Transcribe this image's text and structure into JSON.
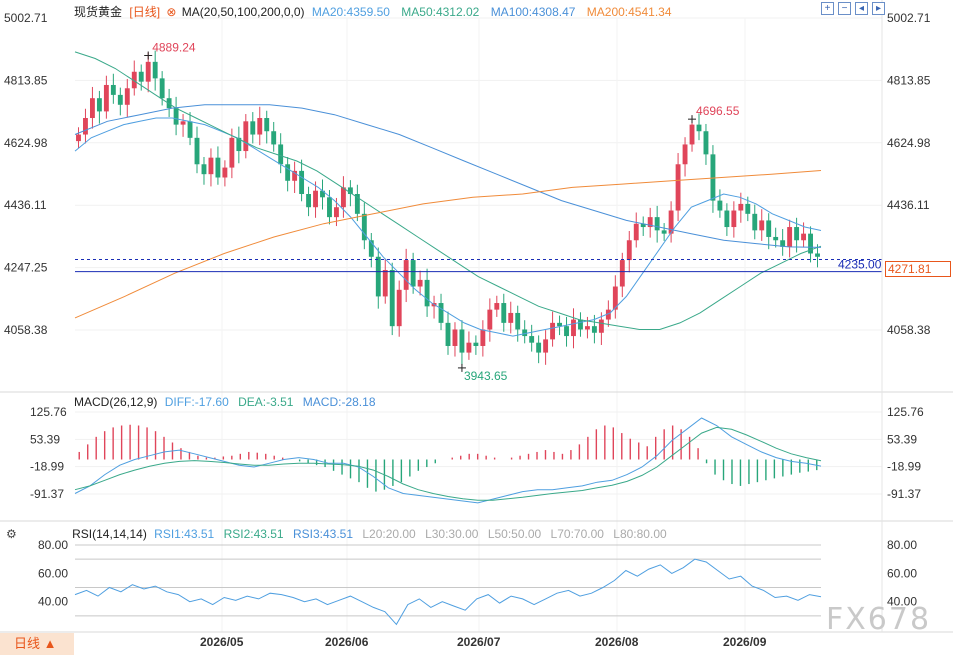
{
  "header": {
    "symbol": "现货黄金",
    "period_tag": "[日线]",
    "ma_label": "MA(20,50,100,200,0,0)",
    "ma20": "MA20:4359.50",
    "ma50": "MA50:4312.02",
    "ma100": "MA100:4308.47",
    "ma200": "MA200:4541.34"
  },
  "toolbar": {
    "zoom_in": "+",
    "zoom_out": "−",
    "pan_left": "◂",
    "pan_right": "▸"
  },
  "macd_header": {
    "label": "MACD(26,12,9)",
    "diff": "DIFF:-17.60",
    "dea": "DEA:-3.51",
    "macd": "MACD:-28.18"
  },
  "rsi_header": {
    "label": "RSI(14,14,14)",
    "rsi1": "RSI1:43.51",
    "rsi2": "RSI2:43.51",
    "rsi3": "RSI3:43.51",
    "l20": "L20:20.00",
    "l30": "L30:30.00",
    "l50": "L50:50.00",
    "l70": "L70:70.00",
    "l80": "L80:80.00"
  },
  "period_tab": "日线 ▲",
  "watermark": "FX678",
  "colors": {
    "up": "#e0455a",
    "down": "#27a67a",
    "ma20": "#4f9fe0",
    "ma50": "#3aa98a",
    "ma100": "#4a90d8",
    "ma200": "#f08b3a",
    "hline": "#1a2db5"
  },
  "chart_data": [
    {
      "type": "candlestick",
      "title": "现货黄金",
      "ylim": [
        3943.65,
        5002.71
      ],
      "yticks": [
        "5002.71",
        "4813.85",
        "4624.98",
        "4436.11",
        "4247.25",
        "4058.38"
      ],
      "xticks": [
        "2026/05",
        "2026/06",
        "2026/07",
        "2026/08",
        "2026/09"
      ],
      "last_price": "4271.81",
      "horizontal_line": {
        "value": 4235.0,
        "label": "4235.00"
      },
      "annotations": [
        {
          "label": "4889.24",
          "kind": "high"
        },
        {
          "label": "4696.55",
          "kind": "high"
        },
        {
          "label": "3943.65",
          "kind": "low"
        }
      ],
      "close": [
        4650,
        4700,
        4760,
        4720,
        4800,
        4770,
        4740,
        4790,
        4840,
        4810,
        4870,
        4820,
        4760,
        4730,
        4680,
        4690,
        4640,
        4560,
        4530,
        4580,
        4520,
        4550,
        4640,
        4600,
        4690,
        4650,
        4700,
        4660,
        4620,
        4560,
        4510,
        4540,
        4470,
        4430,
        4480,
        4460,
        4400,
        4430,
        4490,
        4470,
        4410,
        4330,
        4280,
        4160,
        4240,
        4070,
        4180,
        4270,
        4190,
        4210,
        4130,
        4140,
        4080,
        4010,
        4060,
        3990,
        4020,
        4010,
        4060,
        4120,
        4140,
        4080,
        4110,
        4060,
        4040,
        4020,
        3990,
        4030,
        4080,
        4070,
        4040,
        4090,
        4060,
        4070,
        4050,
        4090,
        4120,
        4190,
        4270,
        4330,
        4380,
        4370,
        4400,
        4360,
        4350,
        4420,
        4560,
        4620,
        4680,
        4660,
        4590,
        4450,
        4420,
        4370,
        4420,
        4440,
        4410,
        4360,
        4390,
        4340,
        4330,
        4310,
        4370,
        4330,
        4350,
        4290,
        4280
      ],
      "series": [
        {
          "name": "MA20",
          "values": [
            4600,
            4640,
            4660,
            4680,
            4690,
            4700,
            4700,
            4690,
            4680,
            4660,
            4640,
            4610,
            4580,
            4550,
            4520,
            4490,
            4450,
            4400,
            4340,
            4280,
            4230,
            4180,
            4140,
            4110,
            4080,
            4060,
            4050,
            4040,
            4050,
            4060,
            4070,
            4080,
            4090,
            4110,
            4160,
            4230,
            4300,
            4370,
            4430,
            4450,
            4470,
            4460,
            4440,
            4410,
            4390,
            4370,
            4359.5
          ]
        },
        {
          "name": "MA50",
          "values": [
            4900,
            4880,
            4850,
            4810,
            4770,
            4730,
            4700,
            4670,
            4640,
            4610,
            4590,
            4570,
            4540,
            4500,
            4460,
            4420,
            4380,
            4340,
            4300,
            4260,
            4220,
            4190,
            4160,
            4130,
            4110,
            4090,
            4080,
            4070,
            4060,
            4060,
            4080,
            4110,
            4150,
            4190,
            4230,
            4260,
            4290,
            4312
          ]
        },
        {
          "name": "MA100",
          "values": [
            4650,
            4690,
            4710,
            4730,
            4740,
            4740,
            4740,
            4730,
            4710,
            4680,
            4650,
            4610,
            4570,
            4530,
            4490,
            4450,
            4420,
            4390,
            4370,
            4350,
            4330,
            4320,
            4310,
            4308.5
          ]
        },
        {
          "name": "MA200",
          "values": [
            4095,
            4160,
            4230,
            4290,
            4340,
            4380,
            4410,
            4440,
            4460,
            4470,
            4490,
            4500,
            4510,
            4520,
            4530,
            4541
          ]
        }
      ]
    },
    {
      "type": "bar",
      "title": "MACD(26,12,9)",
      "ylim": [
        -91.37,
        125.76
      ],
      "yticks": [
        "125.76",
        "53.39",
        "-18.99",
        "-91.37"
      ],
      "values_macd_hist": [
        20,
        40,
        60,
        75,
        85,
        90,
        92,
        90,
        85,
        75,
        60,
        45,
        30,
        20,
        10,
        5,
        5,
        8,
        10,
        15,
        20,
        18,
        15,
        10,
        5,
        0,
        -5,
        -10,
        -15,
        -20,
        -30,
        -40,
        -50,
        -60,
        -75,
        -85,
        -80,
        -70,
        -60,
        -45,
        -30,
        -20,
        -10,
        0,
        5,
        10,
        15,
        15,
        10,
        5,
        0,
        5,
        10,
        15,
        20,
        25,
        20,
        15,
        25,
        40,
        60,
        80,
        90,
        85,
        70,
        55,
        45,
        35,
        60,
        80,
        90,
        80,
        60,
        30,
        -10,
        -40,
        -55,
        -65,
        -70,
        -65,
        -60,
        -55,
        -50,
        -45,
        -40,
        -35,
        -32,
        -28.18
      ],
      "series": [
        {
          "name": "DIFF",
          "values": [
            -90,
            -70,
            -40,
            -15,
            0,
            10,
            20,
            25,
            15,
            5,
            -5,
            -15,
            -20,
            -10,
            0,
            5,
            0,
            -10,
            -10,
            -20,
            -45,
            -75,
            -90,
            -95,
            -100,
            -105,
            -110,
            -115,
            -105,
            -95,
            -85,
            -80,
            -80,
            -75,
            -70,
            -60,
            -55,
            -40,
            -20,
            10,
            50,
            80,
            110,
            90,
            60,
            40,
            20,
            5,
            -5,
            -10,
            -17.6
          ]
        },
        {
          "name": "DEA",
          "values": [
            -80,
            -70,
            -55,
            -40,
            -28,
            -18,
            -10,
            -5,
            -3,
            -5,
            -8,
            -12,
            -15,
            -15,
            -12,
            -10,
            -10,
            -12,
            -14,
            -18,
            -28,
            -45,
            -65,
            -80,
            -90,
            -98,
            -104,
            -108,
            -108,
            -104,
            -100,
            -95,
            -90,
            -86,
            -82,
            -75,
            -68,
            -58,
            -42,
            -20,
            10,
            40,
            70,
            85,
            80,
            65,
            48,
            30,
            15,
            5,
            -3.51
          ]
        }
      ]
    },
    {
      "type": "line",
      "title": "RSI(14,14,14)",
      "ylim": [
        20,
        80
      ],
      "yticks": [
        "80.00",
        "60.00",
        "40.00"
      ],
      "levels": [
        20,
        30,
        50,
        70,
        80
      ],
      "series": [
        {
          "name": "RSI1",
          "values": [
            45,
            48,
            44,
            50,
            47,
            52,
            49,
            51,
            47,
            45,
            40,
            42,
            38,
            43,
            41,
            44,
            42,
            46,
            45,
            43,
            40,
            42,
            38,
            41,
            44,
            40,
            36,
            33,
            24,
            38,
            42,
            36,
            40,
            37,
            34,
            42,
            45,
            39,
            44,
            42,
            38,
            42,
            46,
            48,
            44,
            46,
            50,
            55,
            62,
            58,
            63,
            66,
            60,
            64,
            70,
            68,
            62,
            56,
            58,
            51,
            48,
            43,
            44,
            41,
            45,
            43.5
          ]
        }
      ]
    }
  ]
}
